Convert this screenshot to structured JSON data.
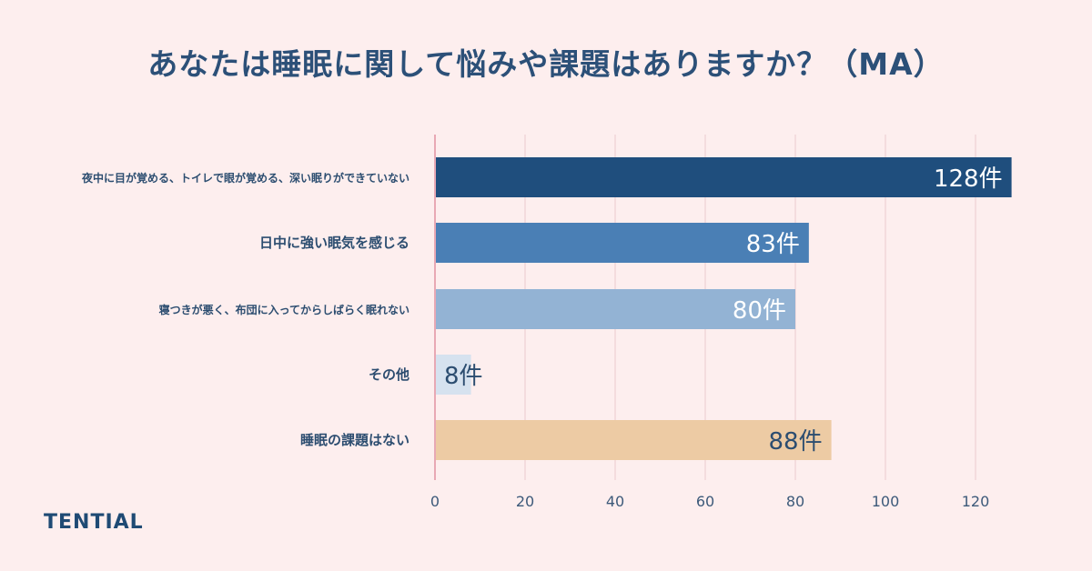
{
  "title": "あなたは睡眠に関して悩みや課題はありますか？（MA）",
  "brand": "TENTIAL",
  "chart_data": {
    "type": "bar",
    "orientation": "horizontal",
    "categories": [
      "夜中に目が覚める、トイレで眼が覚める、深い眠りができていない",
      "日中に強い眠気を感じる",
      "寝つきが悪く、布団に入ってからしばらく眠れない",
      "その他",
      "睡眠の課題はない"
    ],
    "values": [
      128,
      83,
      80,
      8,
      88
    ],
    "value_labels": [
      "128件",
      "83件",
      "80件",
      "8件",
      "88件"
    ],
    "xlim": [
      0,
      120
    ],
    "xticks": [
      0,
      20,
      40,
      60,
      80,
      100,
      120
    ],
    "grid": true,
    "colors": [
      "#1f4e7d",
      "#4a7fb5",
      "#93b3d4",
      "#d6e2ef",
      "#edcba4"
    ],
    "label_colors": [
      "#ffffff",
      "#ffffff",
      "#ffffff",
      "#2c4d70",
      "#2c4d70"
    ],
    "axis_color": "#e8a8b4",
    "grid_color": "#f2d6d9"
  }
}
